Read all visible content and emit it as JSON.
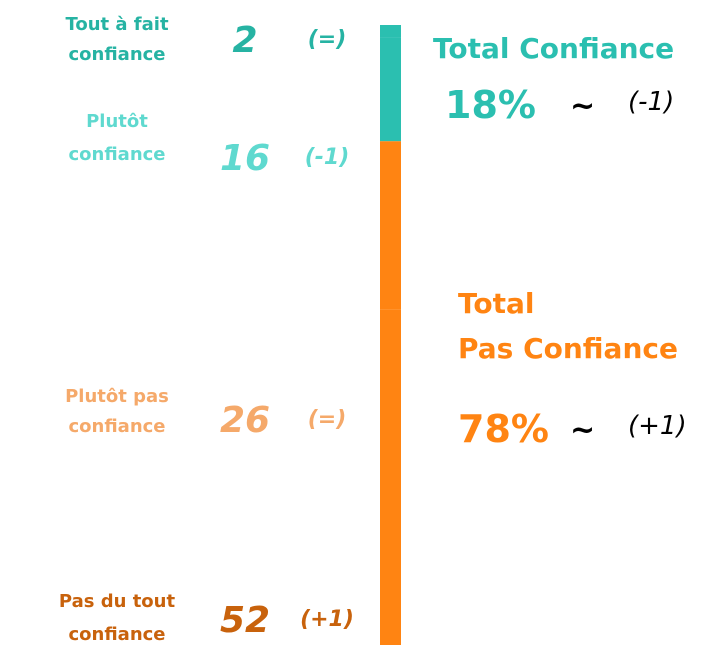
{
  "chart_data": {
    "type": "bar",
    "categories": [
      [
        "Tout à fait",
        "confiance"
      ],
      [
        "Plutôt",
        "confiance"
      ],
      [
        "Plutôt pas",
        "confiance"
      ],
      [
        "Pas du tout",
        "confiance"
      ]
    ],
    "values": [
      2,
      16,
      26,
      52
    ],
    "changes": [
      "(=)",
      "(-1)",
      "(=)",
      "(+1)"
    ],
    "label_colors": [
      "#26b3a3",
      "#5fd9cf",
      "#f5a96a",
      "#c8620c"
    ],
    "colors": [
      "#2bbfb0",
      "#2bbfb0",
      "#ff8412",
      "#ff8412"
    ],
    "totals": [
      {
        "name": [
          "Total Confiance"
        ],
        "value": 18,
        "value_label": "18%",
        "trend": "~",
        "change": "(-1)",
        "color": "#2bbfb0"
      },
      {
        "name": [
          "Total",
          "Pas Confiance"
        ],
        "value": 78,
        "value_label": "78%",
        "trend": "~",
        "change": "(+1)",
        "color": "#ff8412"
      }
    ]
  }
}
